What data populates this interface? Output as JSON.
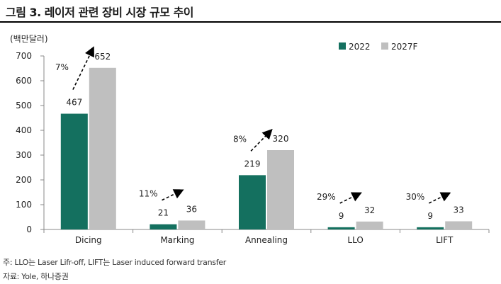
{
  "header": {
    "title": "그림 3. 레이저 관련 장비 시장 규모 추이"
  },
  "colors": {
    "series_2022": "#14705f",
    "series_2027F": "#bfbfbf",
    "axis": "#888888",
    "arrow": "#000000"
  },
  "chart_data": {
    "type": "bar",
    "title": "",
    "unit_label": "(백만달러)",
    "categories": [
      "Dicing",
      "Marking",
      "Annealing",
      "LLO",
      "LIFT"
    ],
    "series": [
      {
        "name": "2022",
        "values": [
          467,
          21,
          219,
          9,
          9
        ]
      },
      {
        "name": "2027F",
        "values": [
          652,
          36,
          320,
          32,
          33
        ]
      }
    ],
    "growth_labels": [
      "7%",
      "11%",
      "8%",
      "29%",
      "30%"
    ],
    "ylim": [
      0,
      700
    ],
    "yticks": [
      0,
      100,
      200,
      300,
      400,
      500,
      600,
      700
    ],
    "grid": false,
    "legend_position": "top-right"
  },
  "footnotes": {
    "note": "주: LLO는 Laser Lifr-off, LIFT는 Laser induced forward transfer",
    "source": "자료: Yole, 하나증권"
  }
}
